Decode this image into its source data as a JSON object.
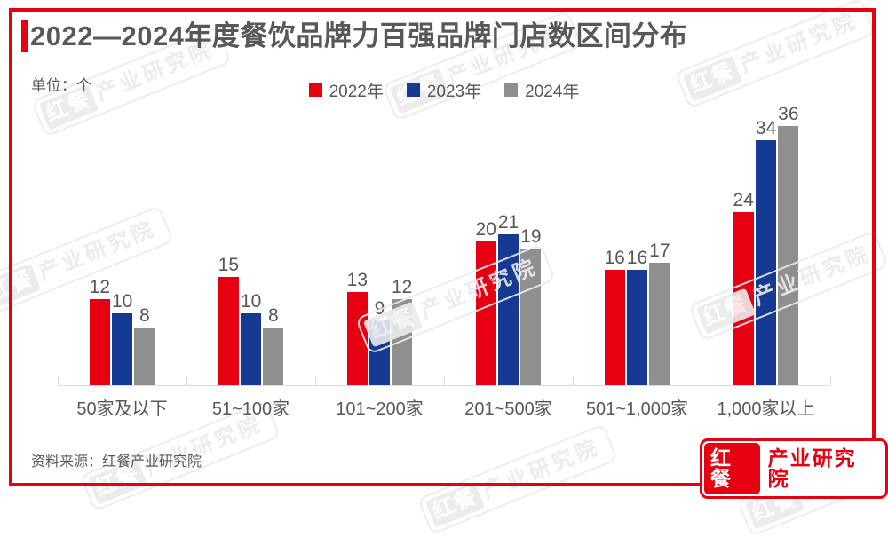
{
  "header": {
    "title": "2022—2024年度餐饮品牌力百强品牌门店数区间分布"
  },
  "chart_data": {
    "type": "bar",
    "title": "2022—2024年度餐饮品牌力百强品牌门店数区间分布",
    "unit_label": "单位：个",
    "categories": [
      "50家及以下",
      "51~100家",
      "101~200家",
      "201~500家",
      "501~1,000家",
      "1,000家以上"
    ],
    "series": [
      {
        "name": "2022年",
        "color": "#e60012",
        "values": [
          12,
          15,
          13,
          20,
          16,
          24
        ]
      },
      {
        "name": "2023年",
        "color": "#143a93",
        "values": [
          10,
          10,
          9,
          21,
          16,
          34
        ]
      },
      {
        "name": "2024年",
        "color": "#8f8f8f",
        "values": [
          8,
          8,
          12,
          19,
          17,
          36
        ]
      }
    ],
    "ylim": [
      0,
      36
    ],
    "grid": false,
    "legend_position": "top",
    "value_labels": true,
    "xlabel": "",
    "ylabel": ""
  },
  "footer": {
    "source": "资料来源：红餐产业研究院",
    "logo": {
      "left": "红餐",
      "right": "产业研究院"
    }
  },
  "watermark": {
    "badge": "红餐",
    "text": "产业研究院"
  },
  "colors": {
    "accent_red": "#e60012",
    "text_gray": "#595757",
    "axis_gray": "#dcdcdc"
  }
}
